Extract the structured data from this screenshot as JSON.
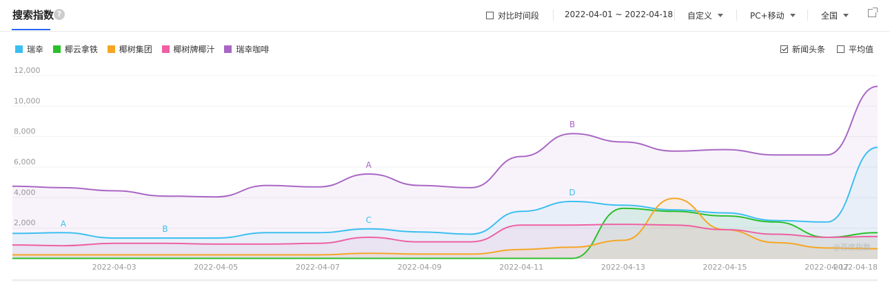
{
  "header": {
    "title": "搜索指数",
    "help_glyph": "?",
    "compare_label": "对比时间段",
    "date_range": "2022-04-01 ~ 2022-04-18",
    "custom_label": "自定义",
    "device_label": "PC+移动",
    "region_label": "全国"
  },
  "options": {
    "news_label": "新闻头条",
    "news_checked": true,
    "avg_label": "平均值",
    "avg_checked": false
  },
  "watermark": "@百度指数",
  "chart_data": {
    "type": "area",
    "x": [
      "2022-04-01",
      "2022-04-02",
      "2022-04-03",
      "2022-04-04",
      "2022-04-05",
      "2022-04-06",
      "2022-04-07",
      "2022-04-08",
      "2022-04-09",
      "2022-04-10",
      "2022-04-11",
      "2022-04-12",
      "2022-04-13",
      "2022-04-14",
      "2022-04-15",
      "2022-04-16",
      "2022-04-17",
      "2022-04-18"
    ],
    "x_tick_labels": [
      "2022-04-03",
      "2022-04-05",
      "2022-04-07",
      "2022-04-09",
      "2022-04-11",
      "2022-04-13",
      "2022-04-15",
      "2022-04-17",
      "2022-04-18"
    ],
    "y_ticks": [
      "2,000",
      "4,000",
      "6,000",
      "8,000",
      "10,000",
      "12,000"
    ],
    "ylim": [
      0,
      12000
    ],
    "grid": true,
    "legend_position": "top-left",
    "series": [
      {
        "name": "瑞幸",
        "color": "#3bbff0",
        "values": [
          1650,
          1700,
          1350,
          1350,
          1350,
          1700,
          1700,
          1950,
          1750,
          1600,
          3100,
          3750,
          3500,
          3200,
          3000,
          2500,
          2400,
          7300
        ]
      },
      {
        "name": "椰云拿铁",
        "color": "#2bbf2b",
        "values": [
          20,
          20,
          20,
          20,
          20,
          20,
          20,
          20,
          20,
          20,
          20,
          20,
          3300,
          3100,
          2800,
          2400,
          1400,
          1700
        ]
      },
      {
        "name": "椰树集团",
        "color": "#f5a623",
        "values": [
          250,
          250,
          250,
          250,
          250,
          250,
          250,
          350,
          300,
          300,
          600,
          750,
          1200,
          3950,
          1900,
          1050,
          700,
          650
        ]
      },
      {
        "name": "椰树牌椰汁",
        "color": "#ef5fa3",
        "values": [
          900,
          850,
          1000,
          1000,
          950,
          950,
          1000,
          1400,
          1100,
          1100,
          2200,
          2200,
          2250,
          2200,
          1900,
          1600,
          1400,
          1450
        ]
      },
      {
        "name": "瑞幸咖啡",
        "color": "#a866c4",
        "values": [
          4750,
          4650,
          4450,
          4100,
          4050,
          4800,
          4700,
          5550,
          4800,
          4650,
          6700,
          8200,
          7650,
          7050,
          7150,
          6800,
          6800,
          11300
        ]
      }
    ],
    "annotations": [
      {
        "label": "A",
        "series": 0,
        "x": "2022-04-02"
      },
      {
        "label": "B",
        "series": 0,
        "x": "2022-04-04"
      },
      {
        "label": "C",
        "series": 0,
        "x": "2022-04-08"
      },
      {
        "label": "D",
        "series": 0,
        "x": "2022-04-12"
      },
      {
        "label": "A",
        "series": 4,
        "x": "2022-04-08"
      },
      {
        "label": "B",
        "series": 4,
        "x": "2022-04-12"
      }
    ]
  }
}
